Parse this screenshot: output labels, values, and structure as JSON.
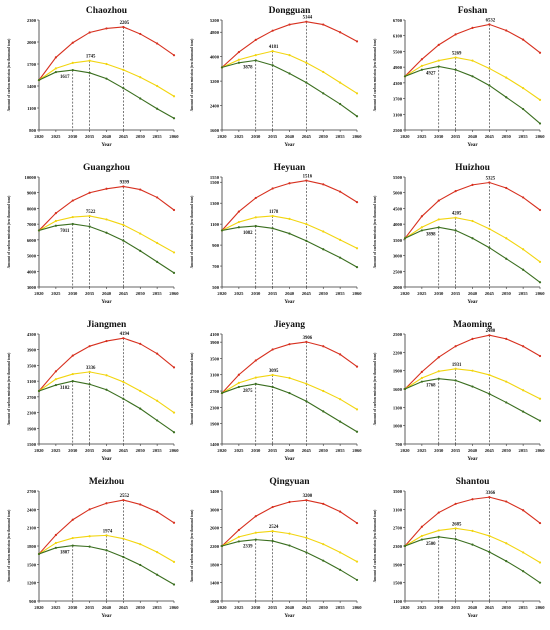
{
  "x_ticks": [
    "2020",
    "2025",
    "2030",
    "2035",
    "2040",
    "2045",
    "2050",
    "2055",
    "2060"
  ],
  "colors": {
    "high": "#d7301f",
    "mid": "#f2d50f",
    "low": "#3a6e1f"
  },
  "ylabel": "Amount of carbon emission (ten thousand tons)",
  "xlabel": "Year",
  "chart_data": [
    {
      "type": "line",
      "title": "Chaozhou",
      "x": [
        2020,
        2025,
        2030,
        2035,
        2040,
        2045,
        2050,
        2055,
        2060
      ],
      "yticks": [
        "800",
        "1100",
        "1400",
        "1700",
        "2000",
        "2300"
      ],
      "ylim": [
        800,
        2300
      ],
      "series": [
        {
          "values": [
            1480,
            1790,
            1990,
            2130,
            2185,
            2205,
            2110,
            1980,
            1820
          ]
        },
        {
          "values": [
            1480,
            1640,
            1715,
            1745,
            1700,
            1620,
            1520,
            1400,
            1260
          ]
        },
        {
          "values": [
            1480,
            1590,
            1617,
            1580,
            1500,
            1370,
            1230,
            1090,
            960
          ]
        }
      ],
      "annotations": [
        {
          "x": 2045,
          "y": 2205,
          "text": "2205"
        },
        {
          "x": 2035,
          "y": 1745,
          "text": "1745"
        },
        {
          "x": 2030,
          "y": 1617,
          "text": "1617"
        }
      ]
    },
    {
      "type": "line",
      "title": "Dongguan",
      "x": [
        2020,
        2025,
        2030,
        2035,
        2040,
        2045,
        2050,
        2055,
        2060
      ],
      "yticks": [
        "1600",
        "2400",
        "3200",
        "4000",
        "4800",
        "5200"
      ],
      "ylim": [
        1600,
        5200
      ],
      "series": [
        {
          "values": [
            3650,
            4150,
            4550,
            4850,
            5050,
            5144,
            5050,
            4800,
            4500
          ]
        },
        {
          "values": [
            3650,
            3900,
            4050,
            4181,
            4050,
            3800,
            3500,
            3150,
            2800
          ]
        },
        {
          "values": [
            3650,
            3800,
            3878,
            3720,
            3450,
            3150,
            2800,
            2450,
            2050
          ]
        }
      ],
      "annotations": [
        {
          "x": 2045,
          "y": 5144,
          "text": "5144"
        },
        {
          "x": 2035,
          "y": 4181,
          "text": "4181"
        },
        {
          "x": 2030,
          "y": 3878,
          "text": "3878"
        }
      ]
    },
    {
      "type": "line",
      "title": "Foshan",
      "x": [
        2020,
        2025,
        2030,
        2035,
        2040,
        2045,
        2050,
        2055,
        2060
      ],
      "yticks": [
        "2500",
        "3100",
        "3700",
        "4300",
        "4900",
        "5500",
        "6100",
        "6700"
      ],
      "ylim": [
        2500,
        6700
      ],
      "series": [
        {
          "values": [
            4550,
            5200,
            5750,
            6150,
            6400,
            6532,
            6300,
            5950,
            5450
          ]
        },
        {
          "values": [
            4550,
            4950,
            5150,
            5269,
            5150,
            4850,
            4500,
            4100,
            3650
          ]
        },
        {
          "values": [
            4550,
            4800,
            4927,
            4800,
            4550,
            4200,
            3750,
            3300,
            2750
          ]
        }
      ],
      "annotations": [
        {
          "x": 2045,
          "y": 6532,
          "text": "6532"
        },
        {
          "x": 2035,
          "y": 5269,
          "text": "5269"
        },
        {
          "x": 2030,
          "y": 4927,
          "text": "4927"
        }
      ]
    },
    {
      "type": "line",
      "title": "Guangzhou",
      "x": [
        2020,
        2025,
        2030,
        2035,
        2040,
        2045,
        2050,
        2055,
        2060
      ],
      "yticks": [
        "3000",
        "4000",
        "5000",
        "6000",
        "7000",
        "8000",
        "9000",
        "10000"
      ],
      "ylim": [
        3000,
        10000
      ],
      "series": [
        {
          "values": [
            6600,
            7700,
            8500,
            9000,
            9250,
            9399,
            9200,
            8700,
            7900
          ]
        },
        {
          "values": [
            6600,
            7200,
            7450,
            7522,
            7300,
            6950,
            6400,
            5800,
            5200
          ]
        },
        {
          "values": [
            6600,
            6900,
            7011,
            6850,
            6450,
            5950,
            5300,
            4600,
            3900
          ]
        }
      ],
      "annotations": [
        {
          "x": 2045,
          "y": 9399,
          "text": "9399"
        },
        {
          "x": 2035,
          "y": 7522,
          "text": "7522"
        },
        {
          "x": 2030,
          "y": 7011,
          "text": "7011"
        }
      ]
    },
    {
      "type": "line",
      "title": "Heyuan",
      "x": [
        2020,
        2025,
        2030,
        2035,
        2040,
        2045,
        2050,
        2055,
        2060
      ],
      "yticks": [
        "500",
        "700",
        "900",
        "1100",
        "1300",
        "1500",
        "1550"
      ],
      "ylim": [
        500,
        1550
      ],
      "series": [
        {
          "values": [
            1040,
            1220,
            1350,
            1440,
            1490,
            1516,
            1480,
            1410,
            1310
          ]
        },
        {
          "values": [
            1040,
            1120,
            1165,
            1178,
            1150,
            1100,
            1030,
            950,
            870
          ]
        },
        {
          "values": [
            1040,
            1070,
            1082,
            1060,
            1010,
            940,
            860,
            780,
            690
          ]
        }
      ],
      "annotations": [
        {
          "x": 2045,
          "y": 1516,
          "text": "1516"
        },
        {
          "x": 2035,
          "y": 1178,
          "text": "1178"
        },
        {
          "x": 2030,
          "y": 1082,
          "text": "1082"
        }
      ]
    },
    {
      "type": "line",
      "title": "Huizhou",
      "x": [
        2020,
        2025,
        2030,
        2035,
        2040,
        2045,
        2050,
        2055,
        2060
      ],
      "yticks": [
        "2000",
        "2500",
        "3000",
        "3500",
        "4000",
        "4500",
        "5000",
        "5500"
      ],
      "ylim": [
        2000,
        5500
      ],
      "series": [
        {
          "values": [
            3550,
            4250,
            4750,
            5050,
            5250,
            5325,
            5150,
            4850,
            4450
          ]
        },
        {
          "values": [
            3550,
            3900,
            4150,
            4205,
            4100,
            3850,
            3550,
            3200,
            2800
          ]
        },
        {
          "values": [
            3550,
            3800,
            3898,
            3800,
            3550,
            3250,
            2900,
            2550,
            2150
          ]
        }
      ],
      "annotations": [
        {
          "x": 2045,
          "y": 5325,
          "text": "5325"
        },
        {
          "x": 2035,
          "y": 4205,
          "text": "4205"
        },
        {
          "x": 2030,
          "y": 3898,
          "text": "3898"
        }
      ]
    },
    {
      "type": "line",
      "title": "Jiangmen",
      "x": [
        2020,
        2025,
        2030,
        2035,
        2040,
        2045,
        2050,
        2055,
        2060
      ],
      "yticks": [
        "1500",
        "1900",
        "2300",
        "2700",
        "3100",
        "3500",
        "3900",
        "4300"
      ],
      "ylim": [
        1500,
        4300
      ],
      "series": [
        {
          "values": [
            2850,
            3350,
            3750,
            3990,
            4120,
            4194,
            4050,
            3800,
            3450
          ]
        },
        {
          "values": [
            2850,
            3150,
            3280,
            3336,
            3250,
            3080,
            2850,
            2600,
            2300
          ]
        },
        {
          "values": [
            2850,
            3000,
            3102,
            3020,
            2880,
            2650,
            2400,
            2100,
            1800
          ]
        }
      ],
      "annotations": [
        {
          "x": 2045,
          "y": 4194,
          "text": "4194"
        },
        {
          "x": 2035,
          "y": 3336,
          "text": "3336"
        },
        {
          "x": 2030,
          "y": 3102,
          "text": "3102"
        }
      ]
    },
    {
      "type": "line",
      "title": "Jieyang",
      "x": [
        2020,
        2025,
        2030,
        2035,
        2040,
        2045,
        2050,
        2055,
        2060
      ],
      "yticks": [
        "1400",
        "1900",
        "2300",
        "2700",
        "3100",
        "3500",
        "3900",
        "4100"
      ],
      "ylim": [
        1400,
        4100
      ],
      "series": [
        {
          "values": [
            2650,
            3100,
            3450,
            3720,
            3850,
            3906,
            3800,
            3600,
            3300
          ]
        },
        {
          "values": [
            2650,
            2900,
            3030,
            3095,
            3020,
            2880,
            2700,
            2500,
            2250
          ]
        },
        {
          "values": [
            2650,
            2800,
            2875,
            2800,
            2650,
            2450,
            2200,
            1950,
            1700
          ]
        }
      ],
      "annotations": [
        {
          "x": 2045,
          "y": 3906,
          "text": "3906"
        },
        {
          "x": 2035,
          "y": 3095,
          "text": "3095"
        },
        {
          "x": 2030,
          "y": 2875,
          "text": "2875"
        }
      ]
    },
    {
      "type": "line",
      "title": "Maoming",
      "x": [
        2020,
        2025,
        2030,
        2035,
        2040,
        2045,
        2050,
        2055,
        2060
      ],
      "yticks": [
        "700",
        "1000",
        "1300",
        "1600",
        "1900",
        "2200",
        "2500"
      ],
      "ylim": [
        700,
        2500
      ],
      "series": [
        {
          "values": [
            1600,
            1880,
            2120,
            2300,
            2420,
            2480,
            2420,
            2300,
            2140
          ]
        },
        {
          "values": [
            1600,
            1780,
            1890,
            1931,
            1900,
            1830,
            1720,
            1580,
            1440
          ]
        },
        {
          "values": [
            1600,
            1720,
            1768,
            1740,
            1640,
            1520,
            1380,
            1230,
            1080
          ]
        }
      ],
      "annotations": [
        {
          "x": 2045,
          "y": 2480,
          "text": "2480"
        },
        {
          "x": 2035,
          "y": 1931,
          "text": "1931"
        },
        {
          "x": 2030,
          "y": 1768,
          "text": "1768"
        }
      ]
    },
    {
      "type": "line",
      "title": "Meizhou",
      "x": [
        2020,
        2025,
        2030,
        2035,
        2040,
        2045,
        2050,
        2055,
        2060
      ],
      "yticks": [
        "900",
        "1200",
        "1500",
        "1800",
        "2100",
        "2400",
        "2700"
      ],
      "ylim": [
        900,
        2700
      ],
      "series": [
        {
          "values": [
            1670,
            1980,
            2230,
            2400,
            2500,
            2552,
            2480,
            2360,
            2180
          ]
        },
        {
          "values": [
            1670,
            1850,
            1930,
            1960,
            1974,
            1920,
            1830,
            1700,
            1540
          ]
        },
        {
          "values": [
            1670,
            1770,
            1807,
            1790,
            1730,
            1620,
            1490,
            1330,
            1170
          ]
        }
      ],
      "annotations": [
        {
          "x": 2045,
          "y": 2552,
          "text": "2552"
        },
        {
          "x": 2040,
          "y": 1974,
          "text": "1974"
        },
        {
          "x": 2030,
          "y": 1807,
          "text": "1807"
        }
      ]
    },
    {
      "type": "line",
      "title": "Qingyuan",
      "x": [
        2020,
        2025,
        2030,
        2035,
        2040,
        2045,
        2050,
        2055,
        2060
      ],
      "yticks": [
        "1000",
        "1400",
        "1800",
        "2200",
        "2600",
        "3000",
        "3400"
      ],
      "ylim": [
        1000,
        3400
      ],
      "series": [
        {
          "values": [
            2200,
            2550,
            2850,
            3050,
            3160,
            3200,
            3120,
            2950,
            2700
          ]
        },
        {
          "values": [
            2200,
            2400,
            2490,
            2524,
            2470,
            2380,
            2240,
            2060,
            1860
          ]
        },
        {
          "values": [
            2200,
            2300,
            2339,
            2310,
            2210,
            2060,
            1880,
            1680,
            1460
          ]
        }
      ],
      "annotations": [
        {
          "x": 2045,
          "y": 3200,
          "text": "3200"
        },
        {
          "x": 2035,
          "y": 2524,
          "text": "2524"
        },
        {
          "x": 2030,
          "y": 2339,
          "text": "2339"
        }
      ]
    },
    {
      "type": "line",
      "title": "Shantou",
      "x": [
        2020,
        2025,
        2030,
        2035,
        2040,
        2045,
        2050,
        2055,
        2060
      ],
      "yticks": [
        "1100",
        "1500",
        "1900",
        "2300",
        "2700",
        "3100",
        "3500"
      ],
      "ylim": [
        1100,
        3500
      ],
      "series": [
        {
          "values": [
            2300,
            2720,
            3030,
            3220,
            3320,
            3366,
            3270,
            3080,
            2800
          ]
        },
        {
          "values": [
            2300,
            2520,
            2640,
            2685,
            2630,
            2520,
            2360,
            2160,
            1940
          ]
        },
        {
          "values": [
            2300,
            2440,
            2500,
            2450,
            2330,
            2170,
            1970,
            1750,
            1500
          ]
        }
      ],
      "annotations": [
        {
          "x": 2045,
          "y": 3366,
          "text": "3366"
        },
        {
          "x": 2035,
          "y": 2685,
          "text": "2685"
        },
        {
          "x": 2030,
          "y": 2500,
          "text": "2500"
        }
      ]
    }
  ]
}
